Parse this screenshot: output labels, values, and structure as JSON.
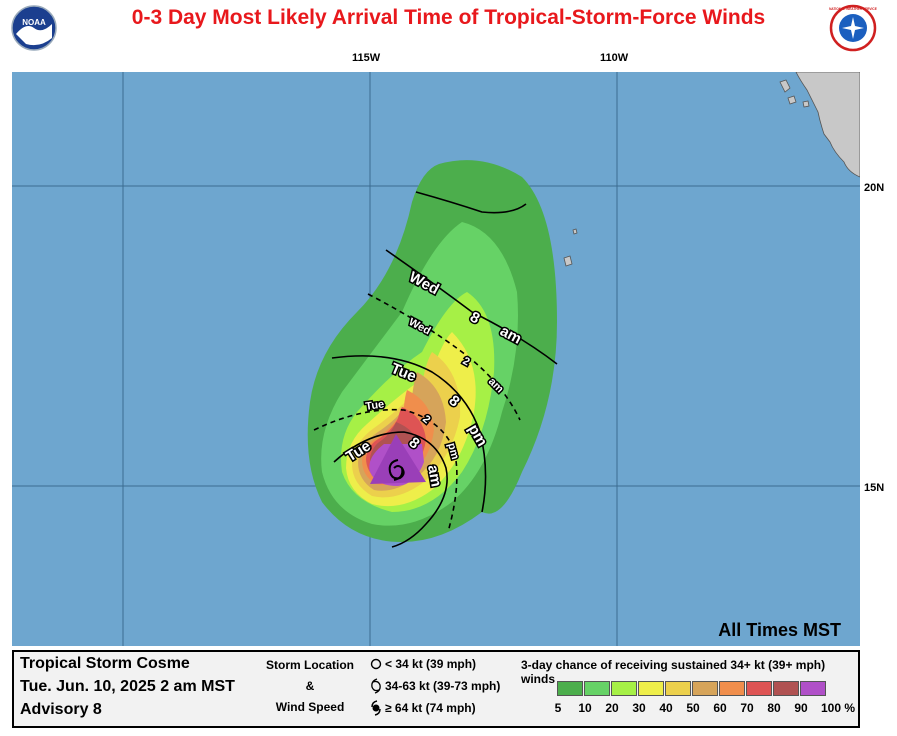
{
  "title": "0-3 Day Most Likely Arrival Time of Tropical-Storm-Force Winds",
  "logos": {
    "left_text": "NOAA",
    "right_text": "NATIONAL WEATHER SERVICE"
  },
  "map": {
    "colors": {
      "ocean": "#6ea6cf",
      "land": "#c8c8c8"
    },
    "longitude_labels": [
      "115W",
      "110W"
    ],
    "latitude_labels": [
      "20N",
      "15N"
    ],
    "arrival_labels": {
      "wed_8am": [
        "Wed",
        "8",
        "am"
      ],
      "wed_2am": [
        "Wed",
        "2",
        "am"
      ],
      "tue_8pm": [
        "Tue",
        "8",
        "pm"
      ],
      "tue_2pm": [
        "Tue",
        "2",
        "pm"
      ],
      "tue_8am": [
        "Tue",
        "8",
        "am"
      ]
    },
    "times_note": "All Times MST"
  },
  "legend": {
    "storm_name": "Tropical Storm Cosme",
    "date": "Tue. Jun. 10, 2025  2 am MST",
    "advisory": "Advisory 8",
    "location_title": [
      "Storm Location",
      "&",
      "Wind Speed"
    ],
    "location_items": [
      {
        "icon": "circle-icon",
        "label": "< 34 kt (39 mph)"
      },
      {
        "icon": "tropical-storm-icon",
        "label": "34-63 kt (39-73 mph)"
      },
      {
        "icon": "hurricane-icon",
        "label": "≥ 64 kt (74 mph)"
      }
    ],
    "chance_title": "3-day chance of receiving sustained 34+ kt (39+ mph) winds",
    "scale_colors": [
      "#4cae4c",
      "#66d266",
      "#a6f046",
      "#eeee4a",
      "#ecd04c",
      "#d6a45a",
      "#f08e4c",
      "#de5454",
      "#b05252",
      "#b050c8"
    ],
    "scale_ticks": [
      "5",
      "10",
      "20",
      "30",
      "40",
      "50",
      "60",
      "70",
      "80",
      "90",
      "100 %"
    ]
  }
}
